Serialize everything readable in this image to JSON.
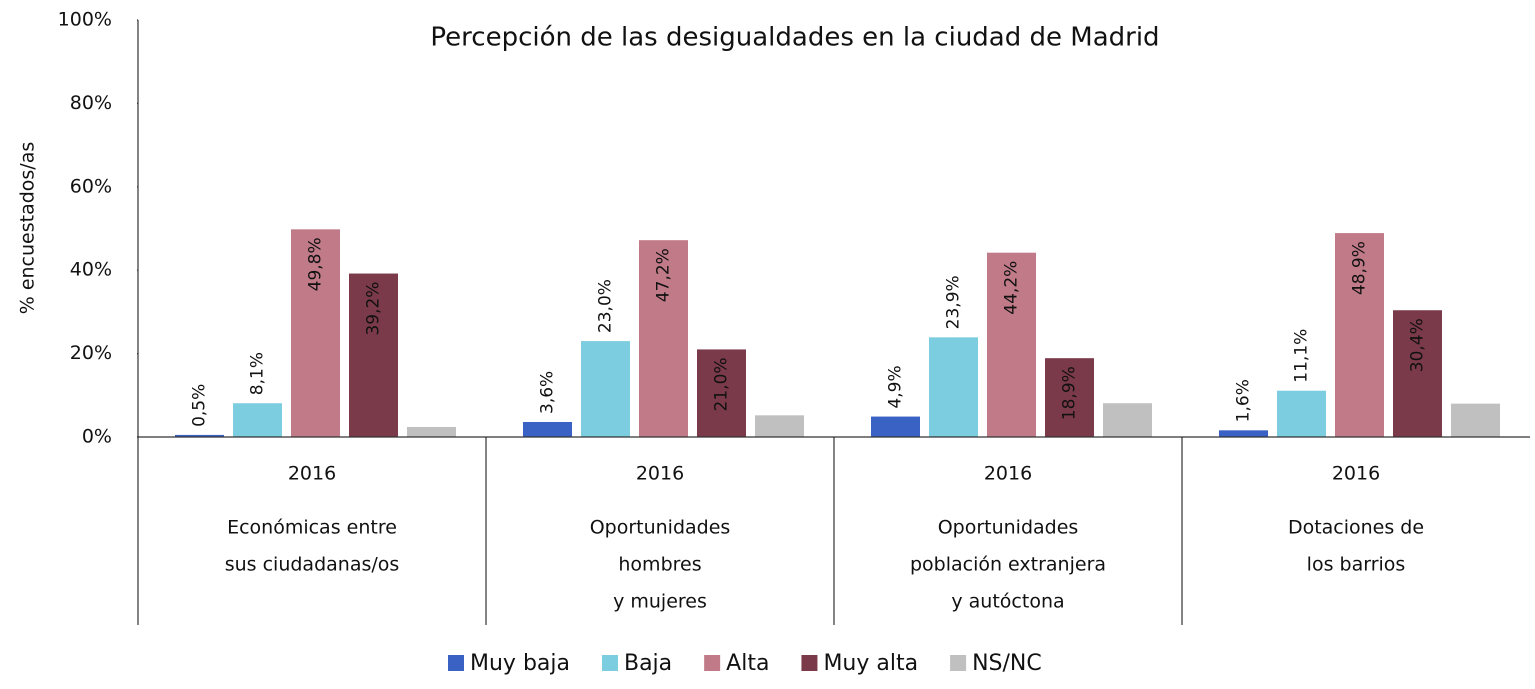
{
  "chart_data": {
    "type": "bar",
    "title": "Percepción de las desigualdades en la ciudad de Madrid",
    "y_label": "% encuestados/as",
    "categories": [
      {
        "year": "2016",
        "lines": [
          "Económicas entre",
          "sus ciudadanas/os"
        ]
      },
      {
        "year": "2016",
        "lines": [
          "Oportunidades",
          "hombres",
          "y mujeres"
        ]
      },
      {
        "year": "2016",
        "lines": [
          "Oportunidades",
          "población extranjera",
          "y autóctona"
        ]
      },
      {
        "year": "2016",
        "lines": [
          "Dotaciones de",
          "los barrios"
        ]
      }
    ],
    "series": [
      {
        "name": "Muy baja",
        "color": "#3a62c4",
        "values": [
          0.5,
          3.6,
          4.9,
          1.6
        ],
        "value_labels": [
          "0,5%",
          "3,6%",
          "4,9%",
          "1,6%"
        ]
      },
      {
        "name": "Baja",
        "color": "#7ccde0",
        "values": [
          8.1,
          23.0,
          23.9,
          11.1
        ],
        "value_labels": [
          "8,1%",
          "23,0%",
          "23,9%",
          "11,1%"
        ]
      },
      {
        "name": "Alta",
        "color": "#c07a88",
        "values": [
          49.8,
          47.2,
          44.2,
          48.9
        ],
        "value_labels": [
          "49,8%",
          "47,2%",
          "44,2%",
          "48,9%"
        ]
      },
      {
        "name": "Muy alta",
        "color": "#7b3a4a",
        "values": [
          39.2,
          21.0,
          18.9,
          30.4
        ],
        "value_labels": [
          "39,2%",
          "21,0%",
          "18,9%",
          "30,4%"
        ]
      },
      {
        "name": "NS/NC",
        "color": "#c0c0c0",
        "values": [
          2.4,
          5.2,
          8.1,
          8.0
        ]
      }
    ],
    "ylim": [
      0,
      100
    ],
    "yticks": [
      {
        "value": 0,
        "label": "0%"
      },
      {
        "value": 20,
        "label": "20%"
      },
      {
        "value": 40,
        "label": "40%"
      },
      {
        "value": 60,
        "label": "60%"
      },
      {
        "value": 80,
        "label": "80%"
      },
      {
        "value": 100,
        "label": "100%"
      }
    ],
    "legend": "bottom"
  }
}
